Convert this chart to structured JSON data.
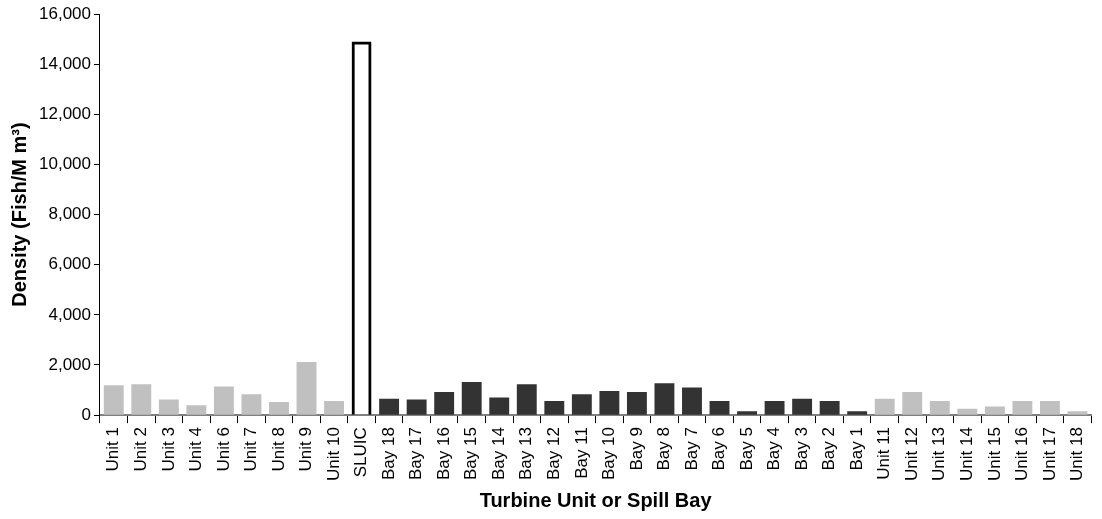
{
  "chart_data": {
    "type": "bar",
    "xlabel": "Turbine Unit or Spill Bay",
    "ylabel": "Density (Fish/M m³)",
    "categories": [
      "Unit 1",
      "Unit 2",
      "Unit 3",
      "Unit 4",
      "Unit 6",
      "Unit 7",
      "Unit 8",
      "Unit 9",
      "Unit 10",
      "SLUIC",
      "Bay 18",
      "Bay 17",
      "Bay 16",
      "Bay 15",
      "Bay 14",
      "Bay 13",
      "Bay 12",
      "Bay 11",
      "Bay 10",
      "Bay 9",
      "Bay 8",
      "Bay 7",
      "Bay 6",
      "Bay 5",
      "Bay 4",
      "Bay 3",
      "Bay 2",
      "Bay 1",
      "Unit 11",
      "Unit 12",
      "Unit 13",
      "Unit 14",
      "Unit 15",
      "Unit 16",
      "Unit 17",
      "Unit 18"
    ],
    "values": [
      1190,
      1230,
      620,
      390,
      1140,
      830,
      520,
      2120,
      560,
      14900,
      650,
      620,
      920,
      1320,
      700,
      1230,
      560,
      830,
      960,
      920,
      1270,
      1100,
      560,
      160,
      560,
      650,
      560,
      160,
      650,
      920,
      560,
      250,
      340,
      560,
      560,
      160
    ],
    "colors": [
      "#c0c0c0",
      "#c0c0c0",
      "#c0c0c0",
      "#c0c0c0",
      "#c0c0c0",
      "#c0c0c0",
      "#c0c0c0",
      "#c0c0c0",
      "#c0c0c0",
      "#000000",
      "#333333",
      "#333333",
      "#333333",
      "#333333",
      "#333333",
      "#333333",
      "#333333",
      "#333333",
      "#333333",
      "#333333",
      "#333333",
      "#333333",
      "#333333",
      "#333333",
      "#333333",
      "#333333",
      "#333333",
      "#333333",
      "#c0c0c0",
      "#c0c0c0",
      "#c0c0c0",
      "#c0c0c0",
      "#c0c0c0",
      "#c0c0c0",
      "#c0c0c0",
      "#c0c0c0"
    ],
    "ylim": [
      0,
      16000
    ],
    "yticks": [
      {
        "value": 0,
        "label": "0"
      },
      {
        "value": 2000,
        "label": "2,000"
      },
      {
        "value": 4000,
        "label": "4,000"
      },
      {
        "value": 6000,
        "label": "6,000"
      },
      {
        "value": 8000,
        "label": "8,000"
      },
      {
        "value": 10000,
        "label": "10,000"
      },
      {
        "value": 12000,
        "label": "12,000"
      },
      {
        "value": 14000,
        "label": "14,000"
      },
      {
        "value": 16000,
        "label": "16,000"
      }
    ],
    "grid": false,
    "legend": false
  }
}
